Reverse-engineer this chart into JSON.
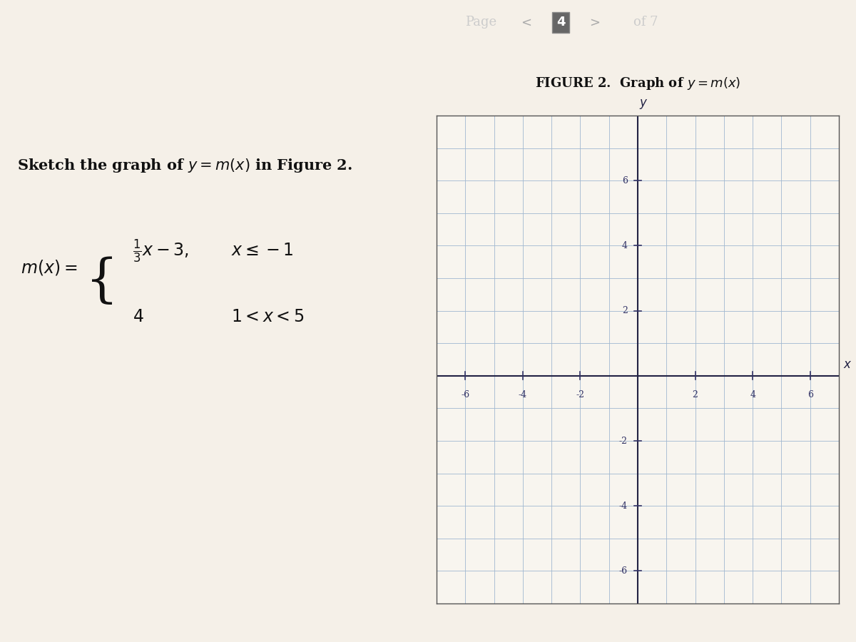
{
  "page_label": "Page",
  "page_num": "4",
  "page_of": "of 7",
  "instruction_text": "Sketch the graph of $y = m(x)$ in Figure 2.",
  "figure_title": "FIGURE 2.  Graph of $y = m(x)$",
  "piecewise_pieces": [
    {
      "expr": "\\frac{1}{3}x - 3",
      "condition": "x \\leq -1"
    },
    {
      "expr": "4",
      "condition": "1 < x < 5"
    }
  ],
  "mx_label": "$m(x) = $",
  "axis_xlim": [
    -7,
    7
  ],
  "axis_ylim": [
    -7,
    8
  ],
  "xticks": [
    -6,
    -4,
    -2,
    2,
    4,
    6
  ],
  "yticks": [
    -6,
    -4,
    -2,
    2,
    4,
    6
  ],
  "grid_color": "#a0b8d0",
  "axis_color": "#222244",
  "bg_color": "#f5f0e8",
  "page_bar_color": "#3a3a3a",
  "page_num_box_color": "#444444",
  "instruction_color": "#111111",
  "figure_title_color": "#111111"
}
